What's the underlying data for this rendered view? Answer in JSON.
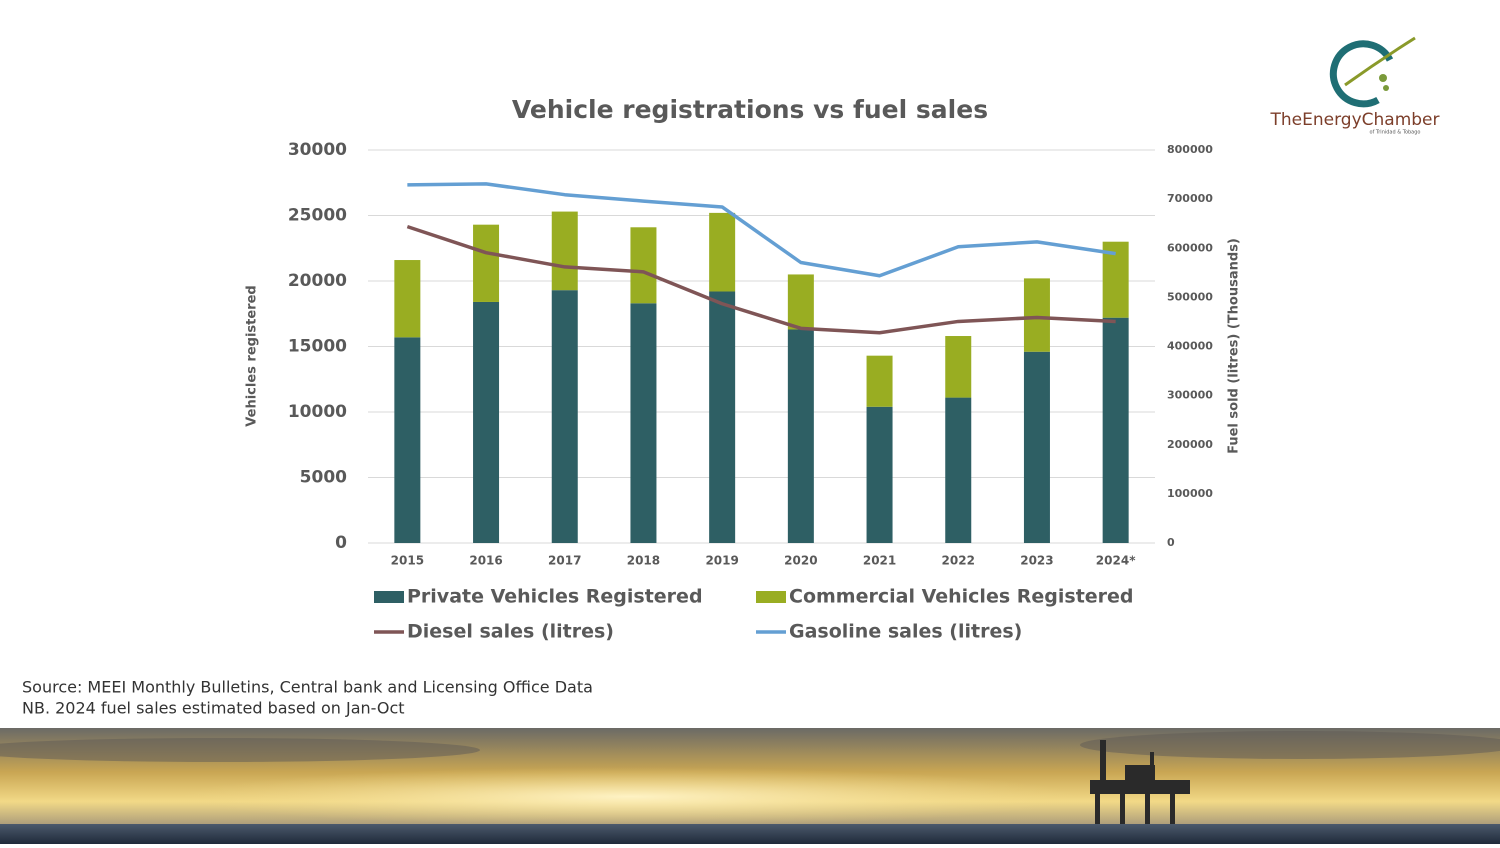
{
  "chart_data": {
    "type": "combo",
    "title": "Vehicle registrations vs fuel sales",
    "y_label": "Vehicles registered",
    "y2_label": "Fuel sold (litres) (Thousands)",
    "categories": [
      "2015",
      "2016",
      "2017",
      "2018",
      "2019",
      "2020",
      "2021",
      "2022",
      "2023",
      "2024*"
    ],
    "stacked": true,
    "series": [
      {
        "name": "Private Vehicles Registered",
        "type": "bar",
        "color": "#2e5f64",
        "values": [
          15700,
          18400,
          19300,
          18300,
          19200,
          16300,
          10400,
          11100,
          14600,
          17200
        ]
      },
      {
        "name": "Commercial Vehicles Registered",
        "type": "bar",
        "color": "#99ad22",
        "values": [
          5900,
          5900,
          6000,
          5800,
          6000,
          4200,
          3900,
          4700,
          5600,
          5800
        ]
      },
      {
        "name": "Diesel sales (litres)",
        "type": "line",
        "axis": "y2",
        "color": "#7f5556",
        "values": [
          644000,
          591000,
          562000,
          552000,
          487000,
          437000,
          428000,
          451000,
          459000,
          451000
        ]
      },
      {
        "name": "Gasoline sales (litres)",
        "type": "line",
        "axis": "y2",
        "color": "#649fd3",
        "values": [
          729000,
          731000,
          709000,
          696000,
          684000,
          571000,
          544000,
          603000,
          613000,
          589000
        ]
      }
    ],
    "ylim": [
      0,
      30000
    ],
    "yticks": [
      0,
      5000,
      10000,
      15000,
      20000,
      25000,
      30000
    ],
    "y2lim": [
      0,
      800000
    ],
    "y2ticks": [
      0,
      100000,
      200000,
      300000,
      400000,
      500000,
      600000,
      700000,
      800000
    ],
    "grid": true,
    "legend": "bottom"
  },
  "notes": [
    "Source: MEEI Monthly Bulletins, Central bank and Licensing Office Data",
    "NB. 2024 fuel sales estimated based on Jan-Oct"
  ],
  "logo": {
    "name": "TheEnergyChamber",
    "subtitle": "of Trinidad & Tobago"
  }
}
